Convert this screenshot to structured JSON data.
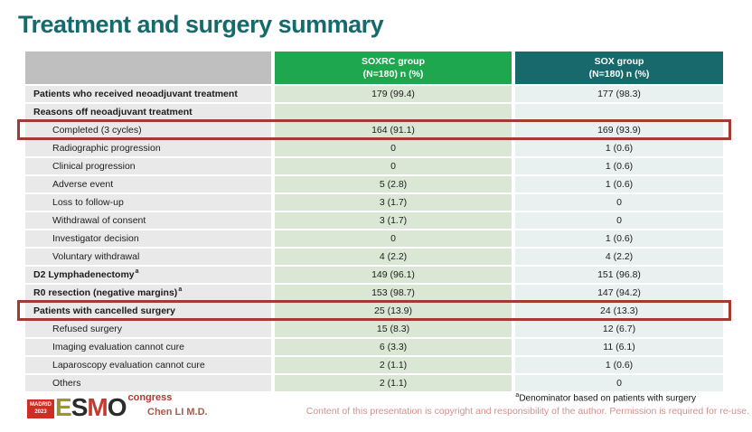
{
  "title": "Treatment and surgery summary",
  "colors": {
    "title": "#156A6D",
    "header_label_bg": "#BFBFBF",
    "header_soxrc_bg": "#1FA750",
    "header_sox_bg": "#17696B",
    "row_label_bg": "#E9E9E9",
    "row_soxrc_bg": "#DAE7D4",
    "row_sox_bg": "#E8F1F0",
    "highlight_border": "#A23B32",
    "madrid_badge_bg": "#D02C22",
    "esmo_e": "#97972E",
    "esmo_s": "#2B2B2B",
    "esmo_m": "#C23B2E",
    "esmo_o": "#2B2B2B",
    "congress_text": "#B3392E",
    "presenter_text": "#A85B4F",
    "copyright_text": "#D4908E"
  },
  "table": {
    "columns": [
      {
        "name": "SOXRC group",
        "sub": "(N=180)  n (%)"
      },
      {
        "name": "SOX group",
        "sub": "(N=180)  n (%)"
      }
    ],
    "rows": [
      {
        "label": "Patients who received neoadjuvant treatment",
        "soxrc": "179 (99.4)",
        "sox": "177 (98.3)",
        "bold": true
      },
      {
        "label": "Reasons off neoadjuvant treatment",
        "soxrc": "",
        "sox": "",
        "bold": true
      },
      {
        "label": "Completed (3 cycles)",
        "soxrc": "164 (91.1)",
        "sox": "169 (93.9)",
        "indent": true,
        "highlight": true
      },
      {
        "label": "Radiographic progression",
        "soxrc": "0",
        "sox": "1 (0.6)",
        "indent": true
      },
      {
        "label": "Clinical progression",
        "soxrc": "0",
        "sox": "1 (0.6)",
        "indent": true
      },
      {
        "label": "Adverse event",
        "soxrc": "5 (2.8)",
        "sox": "1 (0.6)",
        "indent": true
      },
      {
        "label": "Loss to follow-up",
        "soxrc": "3 (1.7)",
        "sox": "0",
        "indent": true
      },
      {
        "label": "Withdrawal of consent",
        "soxrc": "3 (1.7)",
        "sox": "0",
        "indent": true
      },
      {
        "label": "Investigator decision",
        "soxrc": "0",
        "sox": "1 (0.6)",
        "indent": true
      },
      {
        "label": "Voluntary withdrawal",
        "soxrc": "4 (2.2)",
        "sox": "4 (2.2)",
        "indent": true
      },
      {
        "label": "D2 Lymphadenectomy",
        "sup": "a",
        "soxrc": "149 (96.1)",
        "sox": "151 (96.8)",
        "bold": true
      },
      {
        "label": "R0 resection (negative margins)",
        "sup": "a",
        "soxrc": "153 (98.7)",
        "sox": "147 (94.2)",
        "bold": true
      },
      {
        "label": "Patients with cancelled surgery",
        "soxrc": "25 (13.9)",
        "sox": "24 (13.3)",
        "bold": true,
        "highlight": true
      },
      {
        "label": "Refused surgery",
        "soxrc": "15 (8.3)",
        "sox": "12 (6.7)",
        "indent": true
      },
      {
        "label": "Imaging evaluation cannot cure",
        "soxrc": "6 (3.3)",
        "sox": "11 (6.1)",
        "indent": true
      },
      {
        "label": "Laparoscopy evaluation cannot cure",
        "soxrc": "2 (1.1)",
        "sox": "1 (0.6)",
        "indent": true
      },
      {
        "label": "Others",
        "soxrc": "2 (1.1)",
        "sox": "0",
        "indent": true
      }
    ]
  },
  "footer": {
    "logo": {
      "city": "MADRID",
      "year": "2023",
      "letters": [
        "E",
        "S",
        "M",
        "O"
      ],
      "congress": "congress"
    },
    "presenter": "Chen LI M.D.",
    "footnote_sup": "a",
    "footnote_text": "Denominator based on patients with surgery",
    "copyright": "Content of this presentation is copyright and responsibility of the author. Permission is required for re-use."
  }
}
